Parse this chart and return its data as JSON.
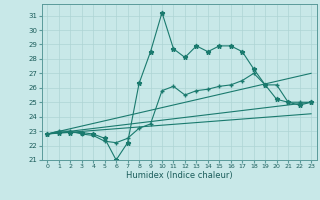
{
  "title": "",
  "xlabel": "Humidex (Indice chaleur)",
  "ylabel": "",
  "xlim": [
    -0.5,
    23.5
  ],
  "ylim": [
    21,
    31.8
  ],
  "yticks": [
    21,
    22,
    23,
    24,
    25,
    26,
    27,
    28,
    29,
    30,
    31
  ],
  "xticks": [
    0,
    1,
    2,
    3,
    4,
    5,
    6,
    7,
    8,
    9,
    10,
    11,
    12,
    13,
    14,
    15,
    16,
    17,
    18,
    19,
    20,
    21,
    22,
    23
  ],
  "bg_color": "#c8e8e8",
  "grid_color": "#aed4d4",
  "line_color": "#1a7a6e",
  "lines": [
    {
      "x": [
        0,
        1,
        2,
        3,
        4,
        5,
        6,
        7,
        8,
        9,
        10,
        11,
        12,
        13,
        14,
        15,
        16,
        17,
        18,
        19,
        20,
        21,
        22,
        23
      ],
      "y": [
        22.8,
        22.9,
        22.9,
        22.9,
        22.8,
        22.5,
        21.0,
        22.2,
        26.3,
        28.5,
        31.2,
        28.7,
        28.1,
        28.9,
        28.5,
        28.9,
        28.9,
        28.5,
        27.3,
        26.2,
        25.2,
        25.0,
        24.8,
        25.0
      ],
      "marker": "*",
      "ms": 3.5
    },
    {
      "x": [
        0,
        1,
        2,
        3,
        4,
        5,
        6,
        7,
        8,
        9,
        10,
        11,
        12,
        13,
        14,
        15,
        16,
        17,
        18,
        19,
        20,
        21,
        22,
        23
      ],
      "y": [
        22.8,
        23.0,
        23.0,
        22.8,
        22.7,
        22.3,
        22.2,
        22.5,
        23.2,
        23.5,
        25.8,
        26.1,
        25.5,
        25.8,
        25.9,
        26.1,
        26.2,
        26.5,
        27.0,
        26.2,
        26.2,
        25.0,
        25.0,
        25.0
      ],
      "marker": "+",
      "ms": 3.5
    },
    {
      "x": [
        0,
        23
      ],
      "y": [
        22.8,
        27.0
      ],
      "marker": "None",
      "ms": 0
    },
    {
      "x": [
        0,
        23
      ],
      "y": [
        22.8,
        25.0
      ],
      "marker": "None",
      "ms": 0
    },
    {
      "x": [
        0,
        23
      ],
      "y": [
        22.8,
        24.2
      ],
      "marker": "None",
      "ms": 0
    }
  ]
}
